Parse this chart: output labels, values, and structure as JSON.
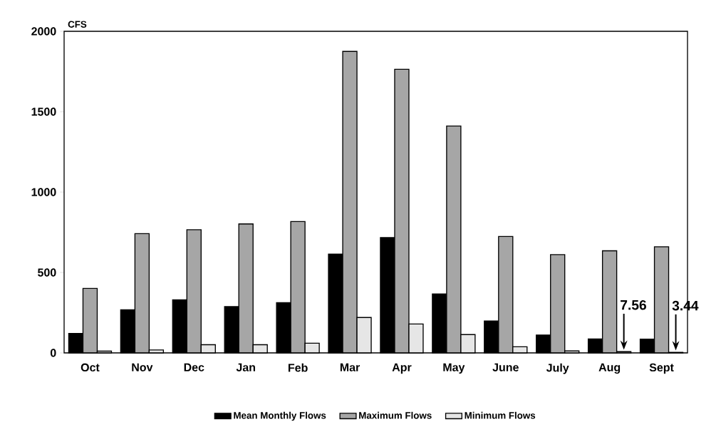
{
  "chart_data": {
    "type": "bar",
    "ylabel": "CFS",
    "categories": [
      "Oct",
      "Nov",
      "Dec",
      "Jan",
      "Feb",
      "Mar",
      "Apr",
      "May",
      "June",
      "July",
      "Aug",
      "Sept"
    ],
    "series": [
      {
        "name": "Mean Monthly Flows",
        "color": "#000000",
        "values": [
          121,
          268,
          330,
          288,
          312,
          614,
          717,
          367,
          198,
          111,
          87,
          86
        ]
      },
      {
        "name": "Maximum Flows",
        "color": "#a6a6a6",
        "values": [
          401,
          742,
          766,
          802,
          817,
          1875,
          1764,
          1411,
          724,
          611,
          635,
          660
        ]
      },
      {
        "name": "Minimum Flows",
        "color": "#e6e6e6",
        "values": [
          11,
          18,
          51,
          51,
          60,
          220,
          180,
          114,
          38,
          12,
          7.56,
          3.44
        ],
        "value_labels": [
          null,
          null,
          null,
          null,
          null,
          null,
          null,
          null,
          null,
          null,
          "7.56",
          "3.44"
        ]
      }
    ],
    "ylim": [
      0,
      2000
    ],
    "yticks": [
      0,
      500,
      1000,
      1500,
      2000
    ],
    "grid": false,
    "legend": "bottom"
  }
}
